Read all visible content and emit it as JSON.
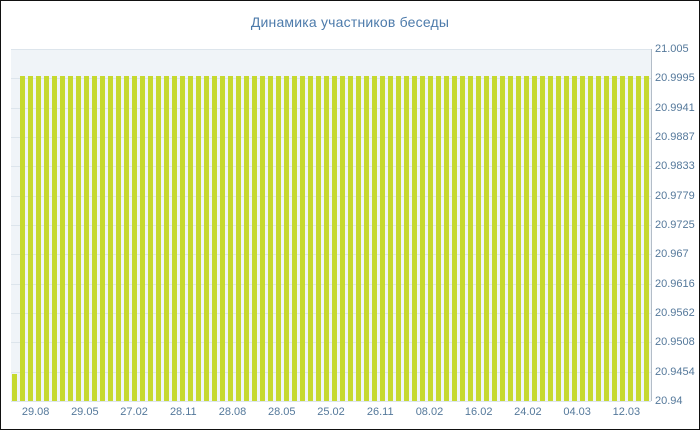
{
  "title": "Динамика участников беседы",
  "colors": {
    "bar": "#c6d92f",
    "title_text": "#4d7bab",
    "axis_text": "#55799b",
    "plot_bg": "#f0f4f8",
    "grid": "#dde5ec",
    "axis_line": "#b3bdc8"
  },
  "chart_data": {
    "type": "bar",
    "title": "Динамика участников беседы",
    "xlabel": "",
    "ylabel": "",
    "ylim": [
      20.94,
      21.005
    ],
    "grid": true,
    "legend": false,
    "y_tick_labels": [
      "21.005",
      "20.9995",
      "20.9941",
      "20.9887",
      "20.9833",
      "20.9779",
      "20.9725",
      "20.967",
      "20.9616",
      "20.9562",
      "20.9508",
      "20.9454",
      "20.94"
    ],
    "x_tick_labels": [
      "29.08",
      "29.05",
      "27.02",
      "28.11",
      "28.08",
      "28.05",
      "25.02",
      "26.11",
      "08.02",
      "16.02",
      "24.02",
      "04.03",
      "12.03"
    ],
    "values": [
      20.945,
      21,
      21,
      21,
      21,
      21,
      21,
      21,
      21,
      21,
      21,
      21,
      21,
      21,
      21,
      21,
      21,
      21,
      21,
      21,
      21,
      21,
      21,
      21,
      21,
      21,
      21,
      21,
      21,
      21,
      21,
      21,
      21,
      21,
      21,
      21,
      21,
      21,
      21,
      21,
      21,
      21,
      21,
      21,
      21,
      21,
      21,
      21,
      21,
      21,
      21,
      21,
      21,
      21,
      21,
      21,
      21,
      21,
      21,
      21,
      21,
      21,
      21,
      21,
      21,
      21,
      21,
      21,
      21,
      21,
      21,
      21,
      21,
      21,
      21,
      21,
      21,
      21,
      21,
      21
    ]
  }
}
